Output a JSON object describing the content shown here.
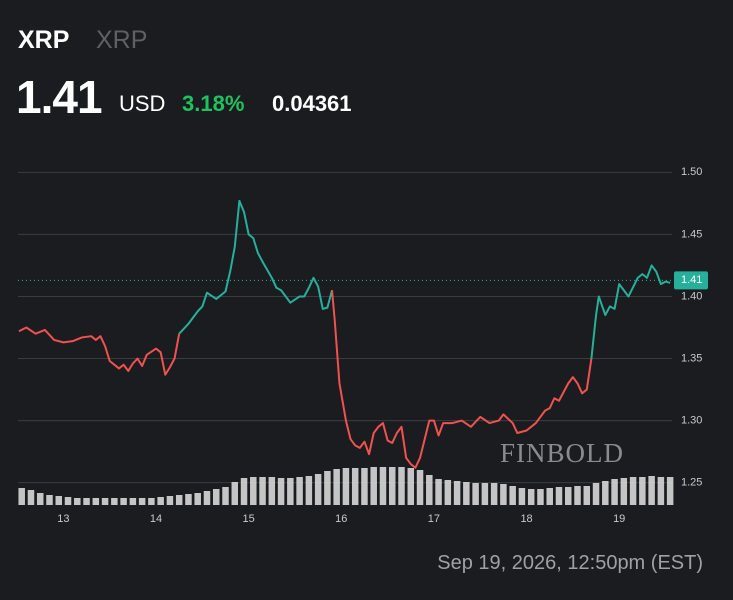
{
  "header": {
    "symbol": "XRP",
    "name": "XRP",
    "price": "1.41",
    "currency": "USD",
    "change_pct": "3.18%",
    "change": "0.04361"
  },
  "watermark": "FINBOLD",
  "timestamp": "Sep 19, 2026, 12:50pm (EST)",
  "chart_data": {
    "type": "line",
    "xlim": [
      12.51,
      19.57
    ],
    "xticks": [
      13,
      14,
      15,
      16,
      17,
      18,
      19
    ],
    "ylim": [
      1.232,
      1.518
    ],
    "yticks": [
      {
        "value": 1.5,
        "label": "1.50"
      },
      1.45,
      {
        "value": 1.4,
        "label": "1.40"
      },
      1.35,
      {
        "value": 1.3,
        "label": "1.30"
      },
      1.25
    ],
    "grid": true,
    "last_price": {
      "value": 1.413,
      "label": "1.41",
      "color": "#26b09b"
    },
    "series": [
      {
        "color": "#f0524f",
        "x": [
          12.52,
          12.6,
          12.7,
          12.8,
          12.9,
          13.0,
          13.1,
          13.2,
          13.3,
          13.35,
          13.4,
          13.45,
          13.5,
          13.6,
          13.65,
          13.7,
          13.75,
          13.8,
          13.85,
          13.9,
          14.0,
          14.05,
          14.1,
          14.15,
          14.2,
          14.25
        ],
        "values": [
          1.372,
          1.375,
          1.37,
          1.373,
          1.365,
          1.363,
          1.364,
          1.367,
          1.368,
          1.365,
          1.368,
          1.36,
          1.348,
          1.342,
          1.345,
          1.34,
          1.346,
          1.35,
          1.344,
          1.353,
          1.358,
          1.355,
          1.337,
          1.343,
          1.35,
          1.37
        ]
      },
      {
        "color": "#26b09b",
        "x": [
          14.25,
          14.35,
          14.45,
          14.5,
          14.55,
          14.65,
          14.75,
          14.8,
          14.85,
          14.9,
          14.95,
          15.0,
          15.05,
          15.1,
          15.15,
          15.25,
          15.3,
          15.35,
          15.45,
          15.55,
          15.6,
          15.65,
          15.7,
          15.75,
          15.8,
          15.85,
          15.9
        ],
        "values": [
          1.37,
          1.378,
          1.388,
          1.392,
          1.403,
          1.398,
          1.404,
          1.42,
          1.44,
          1.477,
          1.468,
          1.45,
          1.447,
          1.435,
          1.428,
          1.415,
          1.407,
          1.405,
          1.395,
          1.4,
          1.4,
          1.407,
          1.415,
          1.408,
          1.39,
          1.391,
          1.405
        ]
      },
      {
        "color": "#f0524f",
        "x": [
          15.9,
          15.93,
          15.98,
          16.05,
          16.1,
          16.15,
          16.2,
          16.25,
          16.3,
          16.35,
          16.4,
          16.45,
          16.5,
          16.55,
          16.6,
          16.65,
          16.7,
          16.75,
          16.8,
          16.85,
          16.9,
          16.95,
          17.0,
          17.05,
          17.1,
          17.2,
          17.3,
          17.4,
          17.5,
          17.6,
          17.7,
          17.75,
          17.85,
          17.9,
          18.0,
          18.1,
          18.2,
          18.25,
          18.3,
          18.35,
          18.45,
          18.5,
          18.55,
          18.6,
          18.65,
          18.7
        ],
        "values": [
          1.405,
          1.38,
          1.33,
          1.3,
          1.285,
          1.28,
          1.278,
          1.283,
          1.273,
          1.29,
          1.295,
          1.298,
          1.284,
          1.282,
          1.29,
          1.295,
          1.27,
          1.265,
          1.262,
          1.27,
          1.285,
          1.3,
          1.3,
          1.288,
          1.298,
          1.298,
          1.3,
          1.295,
          1.303,
          1.298,
          1.3,
          1.305,
          1.298,
          1.29,
          1.292,
          1.298,
          1.308,
          1.31,
          1.318,
          1.316,
          1.33,
          1.335,
          1.33,
          1.322,
          1.325,
          1.35
        ]
      },
      {
        "color": "#26b09b",
        "x": [
          18.7,
          18.75,
          18.78,
          18.85,
          18.9,
          18.95,
          19.0,
          19.05,
          19.1,
          19.2,
          19.25,
          19.3,
          19.35,
          19.4,
          19.45,
          19.5,
          19.55
        ],
        "values": [
          1.35,
          1.385,
          1.4,
          1.385,
          1.392,
          1.39,
          1.41,
          1.405,
          1.4,
          1.415,
          1.418,
          1.415,
          1.425,
          1.42,
          1.41,
          1.412,
          1.411
        ]
      }
    ],
    "volume": {
      "color": "#d8d8d8",
      "ylim": [
        0,
        100
      ],
      "x": [
        12.55,
        12.65,
        12.75,
        12.85,
        12.95,
        13.05,
        13.15,
        13.25,
        13.35,
        13.45,
        13.55,
        13.65,
        13.75,
        13.85,
        13.95,
        14.05,
        14.15,
        14.25,
        14.35,
        14.45,
        14.55,
        14.65,
        14.75,
        14.85,
        14.95,
        15.05,
        15.15,
        15.25,
        15.35,
        15.45,
        15.55,
        15.65,
        15.75,
        15.85,
        15.95,
        16.05,
        16.15,
        16.25,
        16.35,
        16.45,
        16.55,
        16.65,
        16.75,
        16.85,
        16.95,
        17.05,
        17.15,
        17.25,
        17.35,
        17.45,
        17.55,
        17.65,
        17.75,
        17.85,
        17.95,
        18.05,
        18.15,
        18.25,
        18.35,
        18.45,
        18.55,
        18.65,
        18.75,
        18.85,
        18.95,
        19.05,
        19.15,
        19.25,
        19.35,
        19.45,
        19.55
      ],
      "values": [
        17,
        15,
        12,
        10,
        9,
        8,
        7,
        7,
        7,
        7,
        7,
        7,
        7,
        7,
        7,
        8,
        9,
        10,
        11,
        12,
        14,
        16,
        18,
        23,
        27,
        28,
        28,
        28,
        27,
        27,
        28,
        29,
        31,
        34,
        36,
        37,
        37,
        37,
        38,
        38,
        38,
        38,
        37,
        35,
        30,
        26,
        25,
        24,
        23,
        22,
        22,
        22,
        21,
        19,
        17,
        16,
        16,
        17,
        18,
        18,
        19,
        19,
        22,
        24,
        26,
        27,
        28,
        28,
        29,
        28,
        28
      ]
    }
  }
}
